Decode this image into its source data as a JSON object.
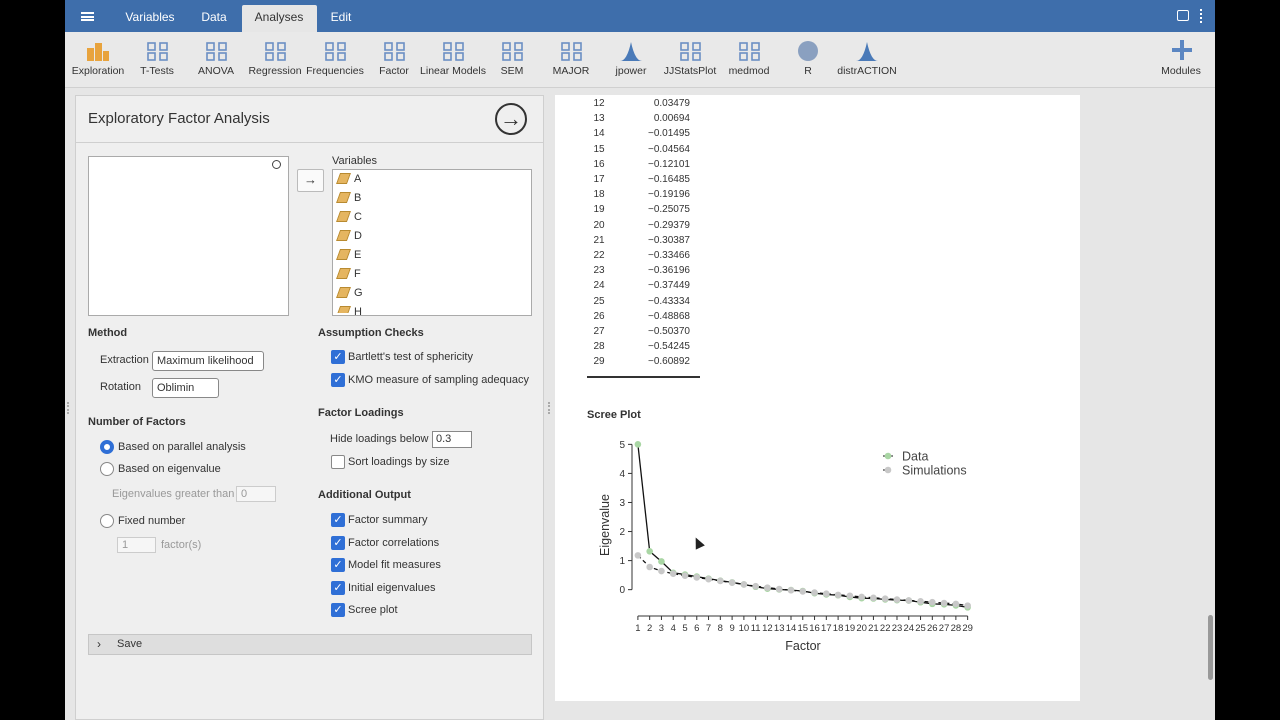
{
  "menu": {
    "tabs": [
      "Variables",
      "Data",
      "Analyses",
      "Edit"
    ]
  },
  "modules": [
    "Exploration",
    "T-Tests",
    "ANOVA",
    "Regression",
    "Frequencies",
    "Factor",
    "Linear Models",
    "SEM",
    "MAJOR",
    "jpower",
    "JJStatsPlot",
    "medmod",
    "R",
    "distrACTION"
  ],
  "modules_right": "Modules",
  "panel": {
    "title": "Exploratory Factor Analysis",
    "variables_label": "Variables",
    "variables": [
      "A",
      "B",
      "C",
      "D",
      "E",
      "F",
      "G",
      "H"
    ],
    "method": {
      "heading": "Method",
      "extraction": {
        "label": "Extraction",
        "value": "Maximum likelihood"
      },
      "rotation": {
        "label": "Rotation",
        "value": "Oblimin"
      }
    },
    "factors": {
      "heading": "Number of Factors",
      "options": [
        {
          "label": "Based on parallel analysis",
          "checked": true
        },
        {
          "label": "Based on eigenvalue",
          "checked": false
        },
        {
          "label": "Fixed number",
          "checked": false
        }
      ],
      "eigen_label": "Eigenvalues greater than",
      "eigen_value": "0",
      "fixed_value": "1",
      "fixed_unit": "factor(s)"
    },
    "assumption": {
      "heading": "Assumption Checks",
      "checks": [
        {
          "label": "Bartlett's test of sphericity",
          "checked": true
        },
        {
          "label": "KMO measure of sampling adequacy",
          "checked": true
        }
      ]
    },
    "loadings": {
      "heading": "Factor Loadings",
      "hide_label": "Hide loadings below",
      "hide_value": "0.3",
      "sort": {
        "label": "Sort loadings by size",
        "checked": false
      }
    },
    "output": {
      "heading": "Additional Output",
      "checks": [
        {
          "label": "Factor summary",
          "checked": true
        },
        {
          "label": "Factor correlations",
          "checked": true
        },
        {
          "label": "Model fit measures",
          "checked": true
        },
        {
          "label": "Initial eigenvalues",
          "checked": true
        },
        {
          "label": "Scree plot",
          "checked": true
        }
      ]
    },
    "save": "Save"
  },
  "results": {
    "rows": [
      [
        "12",
        "0.03479"
      ],
      [
        "13",
        "0.00694"
      ],
      [
        "14",
        "−0.01495"
      ],
      [
        "15",
        "−0.04564"
      ],
      [
        "16",
        "−0.12101"
      ],
      [
        "17",
        "−0.16485"
      ],
      [
        "18",
        "−0.19196"
      ],
      [
        "19",
        "−0.25075"
      ],
      [
        "20",
        "−0.29379"
      ],
      [
        "21",
        "−0.30387"
      ],
      [
        "22",
        "−0.33466"
      ],
      [
        "23",
        "−0.36196"
      ],
      [
        "24",
        "−0.37449"
      ],
      [
        "25",
        "−0.43334"
      ],
      [
        "26",
        "−0.48868"
      ],
      [
        "27",
        "−0.50370"
      ],
      [
        "28",
        "−0.54245"
      ],
      [
        "29",
        "−0.60892"
      ]
    ]
  },
  "chart_data": {
    "type": "line",
    "title": "Scree Plot",
    "xlabel": "Factor",
    "ylabel": "Eigenvalue",
    "x": [
      1,
      2,
      3,
      4,
      5,
      6,
      7,
      8,
      9,
      10,
      11,
      12,
      13,
      14,
      15,
      16,
      17,
      18,
      19,
      20,
      21,
      22,
      23,
      24,
      25,
      26,
      27,
      28,
      29
    ],
    "series": [
      {
        "name": "Data",
        "color": "#a9d6a4",
        "values": [
          5.0,
          1.32,
          0.97,
          0.58,
          0.52,
          0.45,
          0.38,
          0.31,
          0.25,
          0.18,
          0.1,
          0.035,
          0.007,
          -0.015,
          -0.046,
          -0.121,
          -0.165,
          -0.192,
          -0.251,
          -0.294,
          -0.304,
          -0.335,
          -0.362,
          -0.374,
          -0.433,
          -0.489,
          -0.504,
          -0.542,
          -0.609
        ]
      },
      {
        "name": "Simulations",
        "color": "#c8c8c8",
        "values": [
          1.18,
          0.78,
          0.64,
          0.55,
          0.48,
          0.42,
          0.36,
          0.3,
          0.24,
          0.18,
          0.12,
          0.07,
          0.02,
          -0.02,
          -0.06,
          -0.1,
          -0.14,
          -0.18,
          -0.21,
          -0.25,
          -0.28,
          -0.31,
          -0.34,
          -0.37,
          -0.4,
          -0.43,
          -0.46,
          -0.49,
          -0.55
        ]
      }
    ],
    "xlim": [
      0.5,
      29.2
    ],
    "ylim": [
      -0.7,
      5.15
    ],
    "xticks": [
      1,
      2,
      3,
      4,
      5,
      6,
      7,
      8,
      9,
      10,
      11,
      12,
      13,
      14,
      15,
      16,
      17,
      18,
      19,
      20,
      21,
      22,
      23,
      24,
      25,
      26,
      27,
      28,
      29
    ],
    "yticks": [
      0,
      1,
      2,
      3,
      4,
      5
    ]
  }
}
